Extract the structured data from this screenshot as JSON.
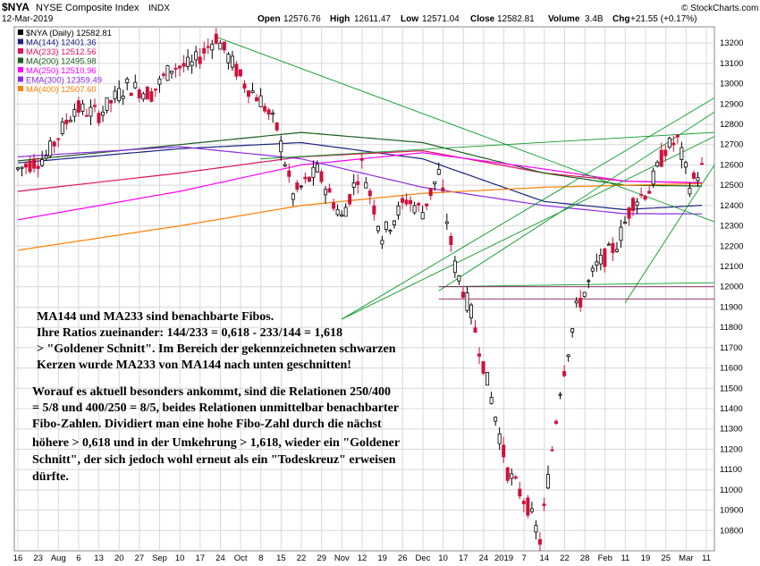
{
  "header": {
    "symbol": "$NYA",
    "index_name": "NYSE Composite Index",
    "exchange": "INDX",
    "date": "12-Mar-2019",
    "watermark": "© StockCharts.com",
    "open_label": "Open",
    "open": "12576.76",
    "high_label": "High",
    "high": "12611.47",
    "low_label": "Low",
    "low": "12571.04",
    "close_label": "Close",
    "close": "12582.81",
    "volume_label": "Volume",
    "volume": "3.4B",
    "chg_label": "Chg",
    "chg": "+21.55 (+0.17%)"
  },
  "chart_data": {
    "type": "candlestick",
    "title": "$NYA NYSE Composite Index INDX",
    "ylim": [
      10700,
      13280
    ],
    "y_ticks": [
      10800,
      10900,
      11000,
      11100,
      11200,
      11300,
      11400,
      11500,
      11600,
      11700,
      11800,
      11900,
      12000,
      12100,
      12200,
      12300,
      12400,
      12500,
      12600,
      12700,
      12800,
      12900,
      13000,
      13100,
      13200
    ],
    "x_tick_labels": [
      "16",
      "23",
      "Aug",
      "6",
      "13",
      "20",
      "27",
      "Sep",
      "10",
      "17",
      "24",
      "Oct",
      "8",
      "15",
      "22",
      "29",
      "Nov",
      "12",
      "19",
      "26",
      "Dec",
      "10",
      "17",
      "24",
      "2019",
      "7",
      "14",
      "22",
      "28",
      "Feb",
      "11",
      "19",
      "25",
      "Mar",
      "11"
    ],
    "grid": true,
    "price_axis": "right",
    "legend": {
      "placement": "top-left",
      "entries": [
        {
          "label": "$NYA (Daily) 12582.81",
          "color": "#000000"
        },
        {
          "label": "MA(144) 12401.36",
          "color": "#1a237e"
        },
        {
          "label": "MA(233) 12512.56",
          "color": "#e0115f"
        },
        {
          "label": "MA(200) 12495.98",
          "color": "#1b5e20"
        },
        {
          "label": "MA(250) 12510.96",
          "color": "#ff00ff"
        },
        {
          "label": "EMA(300) 12359.49",
          "color": "#8a2be2"
        },
        {
          "label": "MA(400) 12507.60",
          "color": "#ff7f00"
        }
      ]
    },
    "key_points": {
      "high_sep": 13230,
      "low_oct": 11840,
      "high_dec": 12000,
      "low_dec": 10750,
      "high_feb": 12760,
      "last": 12582.81
    }
  },
  "annotations": {
    "block1": [
      "MA144 und MA233 sind benachbarte Fibos.",
      "Ihre Ratios zueinander: 144/233 = 0,618 - 233/144 = 1,618",
      "> \"Goldener Schnitt\". Im Bereich der gekennzeichneten schwarzen",
      "Kerzen wurde MA233 von MA144 nach unten geschnitten!"
    ],
    "block2": [
      "Worauf es aktuell besonders ankommt, sind die Relationen 250/400",
      "= 5/8 und 400/250 = 8/5, beides Relationen unmittelbar benachbarter",
      "Fibo-Zahlen. Dividiert man eine hohe Fibo-Zahl durch die nächst",
      "höhere > 0,618 und in der Umkehrung > 1,618, wieder ein \"Goldener",
      "Schnitt\", der sich jedoch wohl erneut als ein \"Todeskreuz\" erweisen",
      "dürfte."
    ]
  },
  "colors": {
    "up_candle": "#000000",
    "down_candle": "#d0103a",
    "grid": "#d8d8d8",
    "trendline": "#0a9a2a"
  }
}
